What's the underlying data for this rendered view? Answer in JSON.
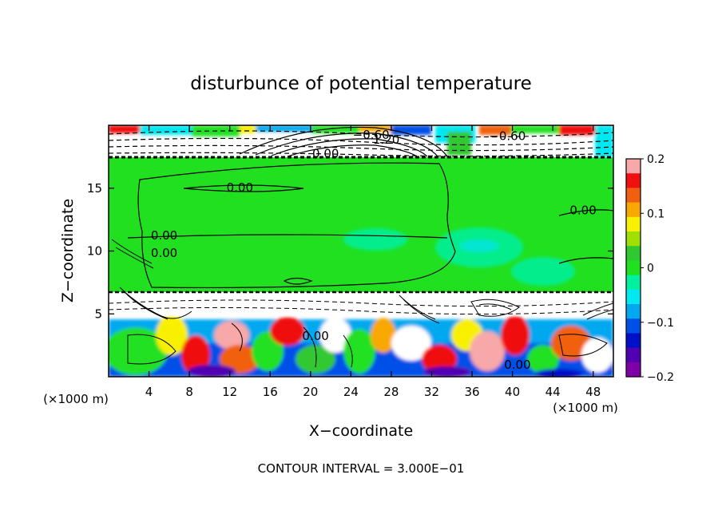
{
  "chart_data": {
    "type": "heatmap",
    "title": "disturbunce of potential temperature",
    "xlabel": "X−coordinate",
    "ylabel": "Z−coordinate",
    "x_unit": "(×1000 m)",
    "x_unit_right": "(×1000 m)",
    "xlim": [
      0,
      50
    ],
    "ylim": [
      0,
      20
    ],
    "x_ticks": [
      4,
      8,
      12,
      16,
      20,
      24,
      28,
      32,
      36,
      40,
      44,
      48
    ],
    "y_ticks": [
      5,
      10,
      15
    ],
    "colorbar": {
      "range": [
        -0.2,
        0.2
      ],
      "ticks": [
        0.2,
        0.1,
        0,
        -0.1,
        -0.2
      ],
      "tick_labels": [
        "0.2",
        "0.1",
        "0",
        "−0.1",
        "−0.2"
      ],
      "colors": [
        "#f8a8a8",
        "#f01010",
        "#f06010",
        "#f8a800",
        "#f8f000",
        "#a0e000",
        "#30c830",
        "#20e020",
        "#00f0a0",
        "#00e8f0",
        "#00a8f0",
        "#0050e8",
        "#0010c8",
        "#5000b0",
        "#8000a8"
      ]
    },
    "contour_labels": [
      {
        "text": "−0.60",
        "x": 26,
        "z": 19.0
      },
      {
        "text": "1.20",
        "x": 27.5,
        "z": 18.6
      },
      {
        "text": "−0.60",
        "x": 39.5,
        "z": 18.9
      },
      {
        "text": "0.00",
        "x": 21.5,
        "z": 17.5
      },
      {
        "text": "0.00",
        "x": 13,
        "z": 14.8
      },
      {
        "text": "0.00",
        "x": 47,
        "z": 13.0
      },
      {
        "text": "0.00",
        "x": 5.5,
        "z": 11.0
      },
      {
        "text": "0.00",
        "x": 5.5,
        "z": 9.6
      },
      {
        "text": "0.00",
        "x": 20.5,
        "z": 3.0
      },
      {
        "text": "0.00",
        "x": 40.5,
        "z": 0.7
      }
    ],
    "contour_interval_text": "CONTOUR INTERVAL = 3.000E−01"
  }
}
